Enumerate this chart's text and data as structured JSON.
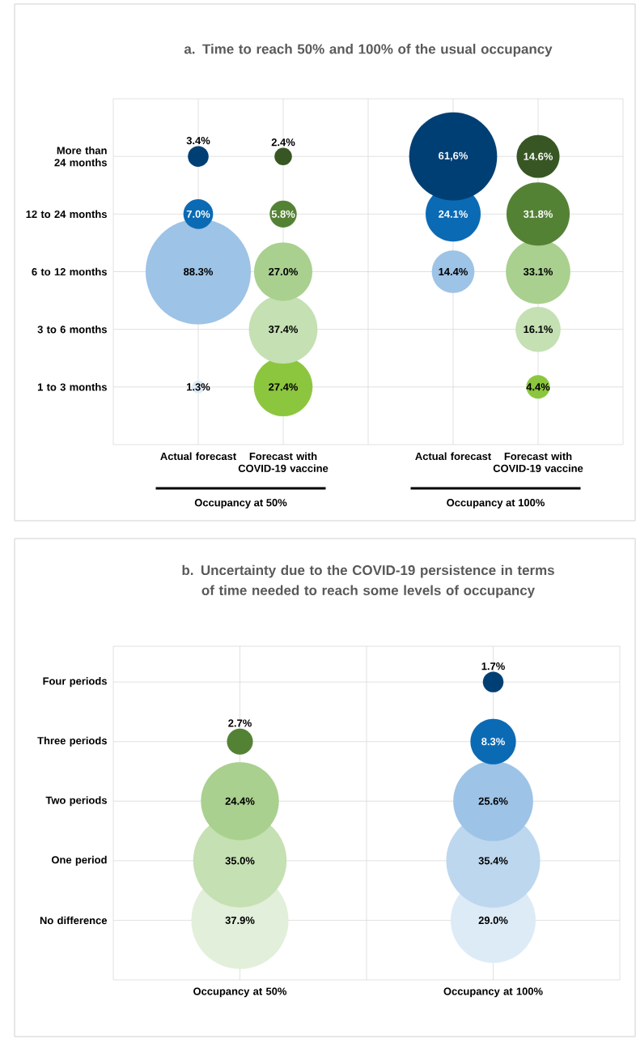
{
  "chart_data": [
    {
      "type": "other",
      "title": "a. Time to reach 50% and 100% of the usual occupancy",
      "categories": [
        "Actual forecast",
        "Forecast with COVID-19 vaccine",
        null,
        "Actual forecast",
        "Forecast with COVID-19 vaccine"
      ],
      "y_categories": [
        "More than 24 months",
        "12 to 24 months",
        "6 to 12 months",
        "3 to 6 months",
        "1 to 3 months"
      ],
      "annotations": [
        "Occupancy at 50%",
        "Occupancy at 100%"
      ],
      "series": [
        {
          "values": [
            3.4,
            2.4,
            null,
            61.6,
            14.6
          ],
          "colors": [
            "#003f74",
            "#375623",
            null,
            "#003f74",
            "#375623"
          ],
          "value_labels": [
            "3.4%",
            "2.4%",
            null,
            "61,6%",
            "14.6%"
          ]
        },
        {
          "values": [
            7.0,
            5.8,
            null,
            24.1,
            31.8
          ],
          "colors": [
            "#0b6ab4",
            "#548235",
            null,
            "#0b6ab4",
            "#548235"
          ],
          "value_labels": [
            "7.0%",
            "5.8%",
            null,
            "24.1%",
            "31.8%"
          ]
        },
        {
          "values": [
            88.3,
            27.0,
            null,
            14.4,
            33.1
          ],
          "colors": [
            "#9dc3e6",
            "#a9d08e",
            null,
            "#9dc3e6",
            "#a9d08e"
          ],
          "value_labels": [
            "88.3%",
            "27.0%",
            null,
            "14.4%",
            "33.1%"
          ]
        },
        {
          "values": [
            null,
            37.4,
            null,
            null,
            16.1
          ],
          "colors": [
            null,
            "#c5e0b3",
            null,
            null,
            "#c5e0b3"
          ],
          "value_labels": [
            null,
            "37.4%",
            null,
            null,
            "16.1%"
          ]
        },
        {
          "values": [
            1.3,
            27.4,
            null,
            null,
            4.4
          ],
          "colors": [
            "#deebf7",
            "#8cc63f",
            null,
            null,
            "#8cc63f"
          ],
          "value_labels": [
            "1.3%",
            "27.4%",
            null,
            null,
            "4.4%"
          ]
        }
      ]
    },
    {
      "type": "other",
      "title": "b. Uncertainty due to the COVID-19 persistence in terms of time needed to reach some levels of occupancy",
      "categories": [
        "Occupancy at 50%",
        null,
        "Occupancy at 100%"
      ],
      "y_categories": [
        "Four periods",
        "Three periods",
        "Two periods",
        "One period",
        "No difference"
      ],
      "series": [
        {
          "values": [
            null,
            null,
            1.7
          ],
          "colors": [
            null,
            null,
            "#003f74"
          ],
          "value_labels": [
            null,
            null,
            "1.7%"
          ]
        },
        {
          "values": [
            2.7,
            null,
            8.3
          ],
          "colors": [
            "#548235",
            null,
            "#0b6ab4"
          ],
          "value_labels": [
            "2.7%",
            null,
            "8.3%"
          ]
        },
        {
          "values": [
            24.4,
            null,
            25.6
          ],
          "colors": [
            "#a9d08e",
            null,
            "#9dc3e6"
          ],
          "value_labels": [
            "24.4%",
            null,
            "25.6%"
          ]
        },
        {
          "values": [
            35.0,
            null,
            35.4
          ],
          "colors": [
            "#c5e0b3",
            null,
            "#bdd7ee"
          ],
          "value_labels": [
            "35.0%",
            null,
            "35.4%"
          ]
        },
        {
          "values": [
            37.9,
            null,
            29.0
          ],
          "colors": [
            "#e2efda",
            null,
            "#ddebf7"
          ],
          "value_labels": [
            "37.9%",
            null,
            "29.0%"
          ]
        }
      ]
    }
  ]
}
